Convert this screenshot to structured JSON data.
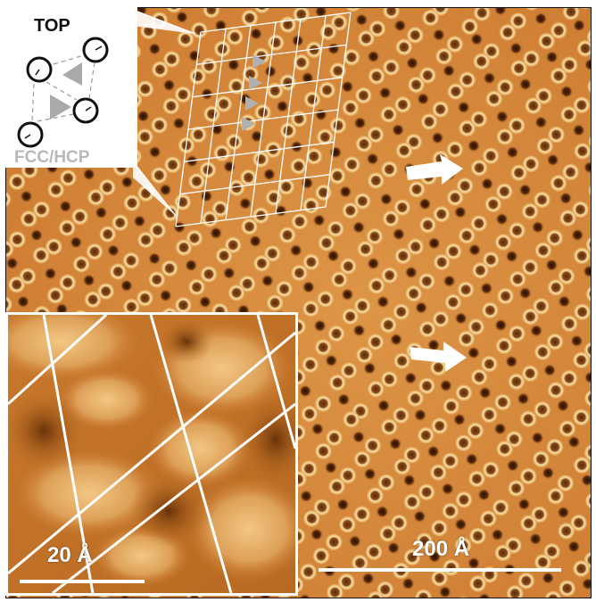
{
  "inset_top": {
    "title": "TOP",
    "subtitle": "FCC/HCP"
  },
  "inset_bottom": {
    "scale_label": "20 Å"
  },
  "main": {
    "scale_label": "200 Å"
  },
  "colors": {
    "background": "#d88a3a",
    "ring": "#f5d59a",
    "hole": "#3a1a06",
    "annotation": "#ffffff",
    "triangle": "#b0b0b0"
  }
}
